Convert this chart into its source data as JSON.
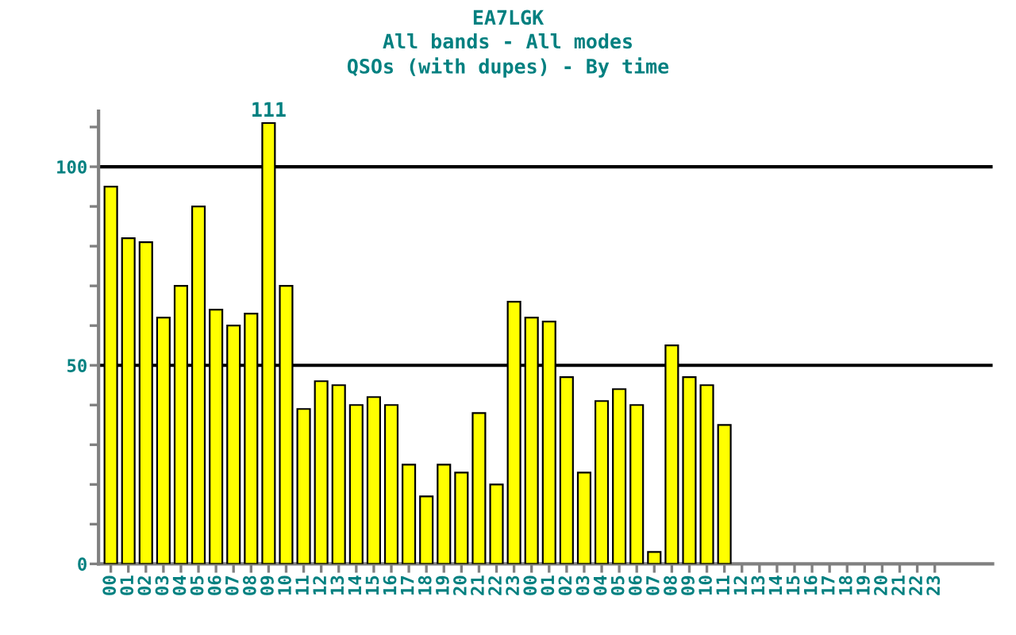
{
  "chart_data": {
    "type": "bar",
    "title": "EA7LGK\nAll bands - All modes\nQSOs (with dupes) - By time",
    "categories": [
      "00",
      "01",
      "02",
      "03",
      "04",
      "05",
      "06",
      "07",
      "08",
      "09",
      "10",
      "11",
      "12",
      "13",
      "14",
      "15",
      "16",
      "17",
      "18",
      "19",
      "20",
      "21",
      "22",
      "23",
      "00",
      "01",
      "02",
      "03",
      "04",
      "05",
      "06",
      "07",
      "08",
      "09",
      "10",
      "11",
      "12",
      "13",
      "14",
      "15",
      "16",
      "17",
      "18",
      "19",
      "20",
      "21",
      "22",
      "23"
    ],
    "values": [
      95,
      82,
      81,
      62,
      70,
      90,
      64,
      60,
      63,
      111,
      70,
      39,
      46,
      45,
      40,
      42,
      40,
      25,
      17,
      25,
      23,
      38,
      20,
      66,
      62,
      61,
      47,
      23,
      41,
      44,
      40,
      3,
      55,
      47,
      45,
      35,
      null,
      null,
      null,
      null,
      null,
      null,
      null,
      null,
      null,
      null,
      null,
      null
    ],
    "value_labels": [
      null,
      null,
      null,
      null,
      null,
      null,
      null,
      null,
      null,
      "111",
      null,
      null,
      null,
      null,
      null,
      null,
      null,
      null,
      null,
      null,
      null,
      null,
      null,
      null,
      null,
      null,
      null,
      null,
      null,
      null,
      null,
      null,
      null,
      null,
      null,
      null,
      null,
      null,
      null,
      null,
      null,
      null,
      null,
      null,
      null,
      null,
      null,
      null
    ],
    "color": "#ffff00",
    "ylim": [
      0,
      114
    ],
    "yticks": [
      0,
      {
        "value": 10,
        "label": null
      },
      {
        "value": 20,
        "label": null
      },
      {
        "value": 30,
        "label": null
      },
      {
        "value": 40,
        "label": null
      },
      50,
      {
        "value": 60,
        "label": null
      },
      {
        "value": 70,
        "label": null
      },
      {
        "value": 80,
        "label": null
      },
      {
        "value": 90,
        "label": null
      },
      100,
      {
        "value": 110,
        "label": null
      }
    ],
    "ref_lines": [
      {
        "axis": "y",
        "value": 50,
        "color": "#000000"
      },
      {
        "axis": "y",
        "value": 100,
        "color": "#000000"
      }
    ],
    "grid": false,
    "legend": false
  }
}
